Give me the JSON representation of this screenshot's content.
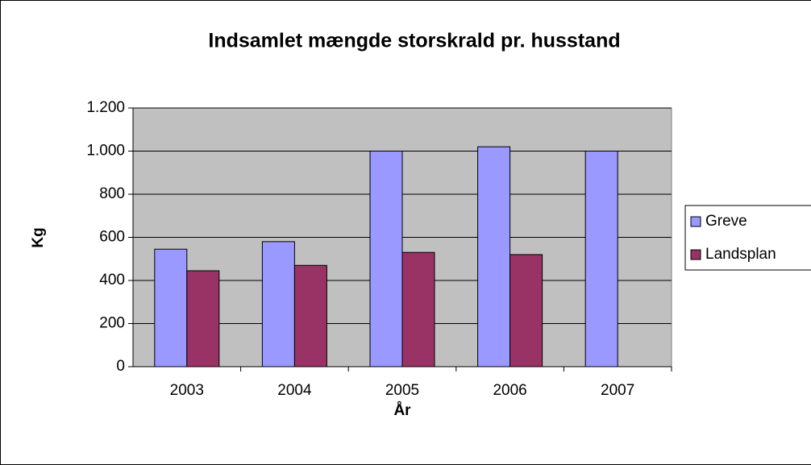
{
  "chart_data": {
    "type": "bar",
    "title": "Indsamlet mængde storskrald pr. husstand",
    "x_label": "År",
    "y_label": "Kg",
    "categories": [
      "2003",
      "2004",
      "2005",
      "2006",
      "2007"
    ],
    "series": [
      {
        "name": "Greve",
        "color": "#9999ff",
        "values": [
          545,
          580,
          1000,
          1020,
          1000
        ]
      },
      {
        "name": "Landsplan",
        "color": "#993366",
        "values": [
          445,
          470,
          530,
          520,
          null
        ]
      }
    ],
    "ylim": [
      0,
      1200
    ],
    "yticks": [
      0,
      200,
      400,
      600,
      800,
      {
        "value": 1000,
        "label": "1.000"
      },
      {
        "value": 1200,
        "label": "1.200"
      }
    ],
    "grid": true,
    "legend": "right",
    "plot_background": "#c0c0c0"
  }
}
